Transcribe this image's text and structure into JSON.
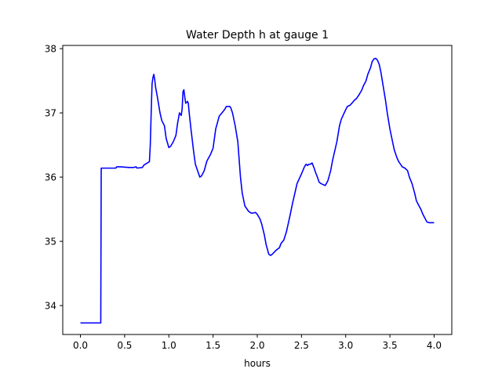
{
  "chart_data": {
    "type": "line",
    "title": "Water Depth h at gauge 1",
    "xlabel": "hours",
    "ylabel": "",
    "xlim": [
      -0.2,
      4.2
    ],
    "ylim": [
      33.55,
      38.05
    ],
    "xticks": [
      0.0,
      0.5,
      1.0,
      1.5,
      2.0,
      2.5,
      3.0,
      3.5,
      4.0
    ],
    "xtick_labels": [
      "0.0",
      "0.5",
      "1.0",
      "1.5",
      "2.0",
      "2.5",
      "3.0",
      "3.5",
      "4.0"
    ],
    "yticks": [
      34,
      35,
      36,
      37,
      38
    ],
    "ytick_labels": [
      "34",
      "35",
      "36",
      "37",
      "38"
    ],
    "grid": false,
    "legend": "none",
    "series": [
      {
        "color": "#0000ff",
        "x": [
          0.0,
          0.23,
          0.235,
          0.25,
          0.4,
          0.41,
          0.45,
          0.55,
          0.6,
          0.63,
          0.64,
          0.7,
          0.72,
          0.78,
          0.79,
          0.8,
          0.81,
          0.82,
          0.83,
          0.84,
          0.85,
          0.87,
          0.9,
          0.92,
          0.95,
          0.97,
          1.0,
          1.02,
          1.05,
          1.08,
          1.1,
          1.12,
          1.14,
          1.15,
          1.16,
          1.17,
          1.18,
          1.19,
          1.2,
          1.21,
          1.22,
          1.23,
          1.25,
          1.28,
          1.3,
          1.33,
          1.35,
          1.37,
          1.4,
          1.43,
          1.47,
          1.5,
          1.53,
          1.57,
          1.6,
          1.63,
          1.65,
          1.67,
          1.69,
          1.7,
          1.72,
          1.75,
          1.78,
          1.81,
          1.83,
          1.86,
          1.9,
          1.93,
          1.95,
          1.98,
          2.0,
          2.03,
          2.05,
          2.08,
          2.1,
          2.13,
          2.15,
          2.17,
          2.19,
          2.22,
          2.25,
          2.27,
          2.3,
          2.33,
          2.37,
          2.4,
          2.45,
          2.5,
          2.53,
          2.55,
          2.57,
          2.58,
          2.6,
          2.62,
          2.64,
          2.66,
          2.68,
          2.7,
          2.72,
          2.75,
          2.77,
          2.8,
          2.83,
          2.85,
          2.9,
          2.93,
          2.95,
          3.0,
          3.02,
          3.05,
          3.07,
          3.1,
          3.12,
          3.15,
          3.18,
          3.2,
          3.23,
          3.25,
          3.28,
          3.3,
          3.32,
          3.34,
          3.36,
          3.38,
          3.4,
          3.42,
          3.45,
          3.47,
          3.5,
          3.53,
          3.55,
          3.58,
          3.6,
          3.62,
          3.64,
          3.67,
          3.7,
          3.72,
          3.75,
          3.78,
          3.8,
          3.83,
          3.85,
          3.87,
          3.9,
          3.92,
          3.95,
          3.97,
          4.0
        ],
        "y": [
          33.73,
          33.73,
          36.14,
          36.14,
          36.14,
          36.16,
          36.16,
          36.15,
          36.15,
          36.16,
          36.14,
          36.15,
          36.19,
          36.24,
          36.5,
          37.0,
          37.45,
          37.55,
          37.6,
          37.52,
          37.4,
          37.25,
          37.0,
          36.88,
          36.8,
          36.6,
          36.46,
          36.48,
          36.55,
          36.65,
          36.85,
          37.0,
          36.96,
          37.06,
          37.33,
          37.36,
          37.25,
          37.15,
          37.16,
          37.18,
          37.15,
          37.0,
          36.75,
          36.4,
          36.2,
          36.08,
          36.0,
          36.02,
          36.1,
          36.25,
          36.35,
          36.45,
          36.75,
          36.95,
          37.0,
          37.05,
          37.1,
          37.1,
          37.1,
          37.08,
          37.0,
          36.8,
          36.55,
          36.0,
          35.75,
          35.55,
          35.47,
          35.44,
          35.44,
          35.45,
          35.42,
          35.35,
          35.27,
          35.1,
          34.95,
          34.8,
          34.78,
          34.8,
          34.83,
          34.87,
          34.9,
          34.97,
          35.02,
          35.15,
          35.4,
          35.6,
          35.9,
          36.05,
          36.15,
          36.2,
          36.18,
          36.2,
          36.2,
          36.22,
          36.15,
          36.07,
          36.0,
          35.92,
          35.9,
          35.88,
          35.87,
          35.95,
          36.1,
          36.25,
          36.55,
          36.8,
          36.9,
          37.05,
          37.1,
          37.12,
          37.15,
          37.2,
          37.22,
          37.28,
          37.35,
          37.42,
          37.5,
          37.6,
          37.7,
          37.8,
          37.84,
          37.85,
          37.82,
          37.75,
          37.62,
          37.45,
          37.2,
          37.0,
          36.75,
          36.55,
          36.42,
          36.3,
          36.24,
          36.2,
          36.16,
          36.14,
          36.1,
          36.0,
          35.9,
          35.75,
          35.63,
          35.55,
          35.5,
          35.43,
          35.35,
          35.3,
          35.29,
          35.29,
          35.29
        ]
      }
    ]
  }
}
